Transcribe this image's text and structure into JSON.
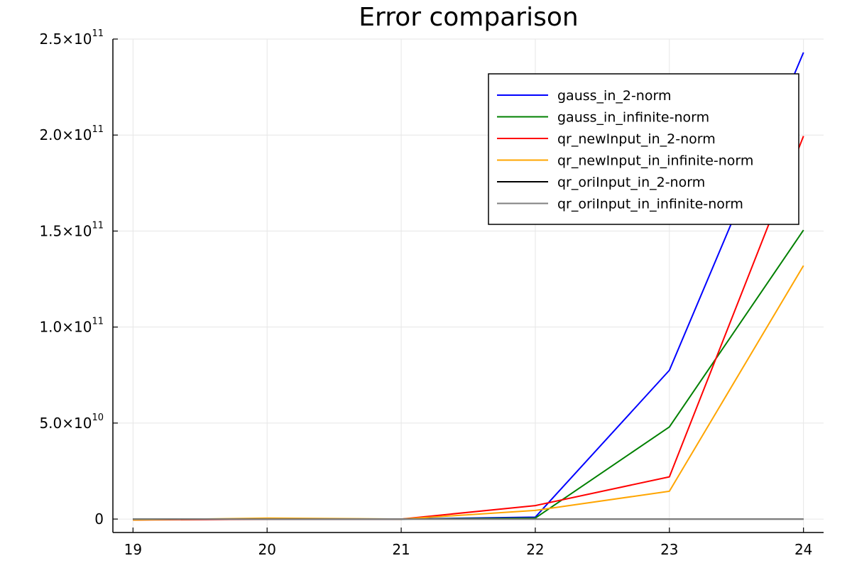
{
  "chart_data": {
    "type": "line",
    "title": "Error comparison",
    "xlabel": "",
    "ylabel": "",
    "x": [
      19,
      20,
      21,
      22,
      23,
      24
    ],
    "xlim": [
      18.85,
      24.15
    ],
    "ylim": [
      -7000000000,
      250000000000
    ],
    "xticks": [
      "19",
      "20",
      "21",
      "22",
      "23",
      "24"
    ],
    "yticks": [
      {
        "value": 0,
        "mantissa": "0",
        "exponent": ""
      },
      {
        "value": 50000000000,
        "mantissa": "5.0×10",
        "exponent": "10"
      },
      {
        "value": 100000000000,
        "mantissa": "1.0×10",
        "exponent": "11"
      },
      {
        "value": 150000000000,
        "mantissa": "1.5×10",
        "exponent": "11"
      },
      {
        "value": 200000000000,
        "mantissa": "2.0×10",
        "exponent": "11"
      },
      {
        "value": 250000000000,
        "mantissa": "2.5×10",
        "exponent": "11"
      }
    ],
    "grid": true,
    "legend_position": "top-right",
    "series": [
      {
        "name": "gauss_in_2-norm",
        "color": "#0000ff",
        "values": [
          0,
          0,
          0,
          1000000000,
          77500000000,
          243000000000
        ]
      },
      {
        "name": "gauss_in_infinite-norm",
        "color": "#008000",
        "values": [
          0,
          0,
          0,
          500000000,
          48000000000,
          150500000000
        ]
      },
      {
        "name": "qr_newInput_in_2-norm",
        "color": "#ff0000",
        "values": [
          -500000000,
          0,
          0,
          7000000000,
          22000000000,
          199500000000
        ]
      },
      {
        "name": "qr_newInput_in_infinite-norm",
        "color": "#ffa500",
        "values": [
          -500000000,
          500000000,
          0,
          4500000000,
          14500000000,
          132000000000
        ]
      },
      {
        "name": "qr_oriInput_in_2-norm",
        "color": "#000000",
        "values": [
          0,
          0,
          0,
          0,
          0,
          0
        ]
      },
      {
        "name": "qr_oriInput_in_infinite-norm",
        "color": "#808080",
        "values": [
          0,
          0,
          0,
          0,
          0,
          0
        ]
      }
    ]
  }
}
